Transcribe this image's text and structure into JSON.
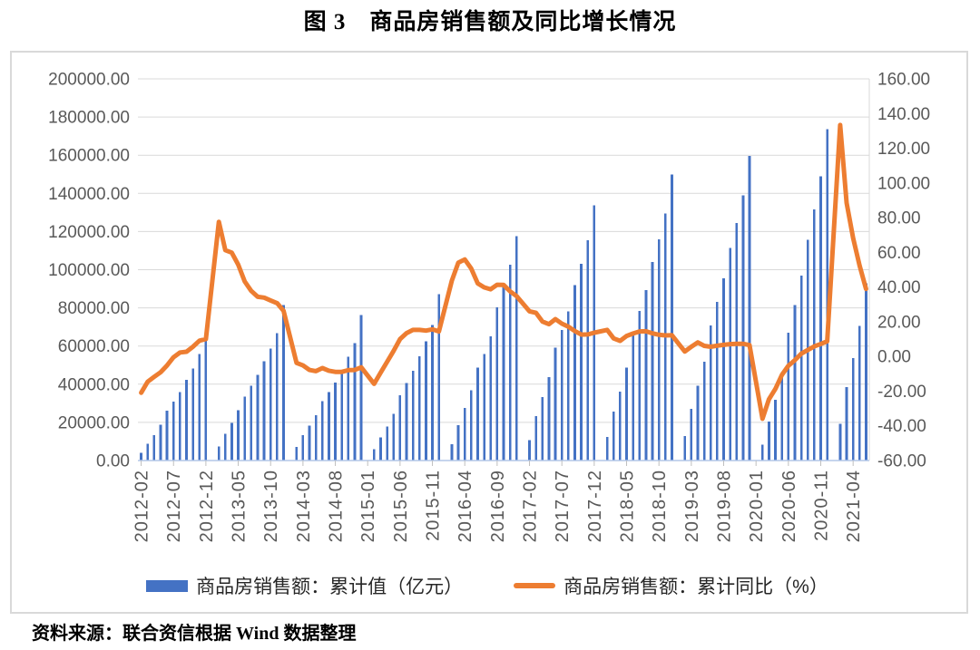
{
  "title": "图 3　商品房销售额及同比增长情况",
  "source": "资料来源：联合资信根据 Wind 数据整理",
  "colors": {
    "bar": "#4472C4",
    "line": "#ED7D31",
    "grid": "#D9D9D9",
    "baseline": "#B4C7E7",
    "tick": "#BFBFBF",
    "axis_text": "#595959",
    "frame_border": "#D9D9D9"
  },
  "legend": [
    {
      "type": "bar",
      "color": "#4472C4",
      "label": "商品房销售额：累计值（亿元）"
    },
    {
      "type": "line",
      "color": "#ED7D31",
      "label": "商品房销售额：累计同比（%）"
    }
  ],
  "chart_data": {
    "type": "combo-bar-line",
    "title": "图 3　商品房销售额及同比增长情况",
    "grid": true,
    "legend_position": "bottom",
    "x_label_interval": 5,
    "x_tick_labels": [
      "2012-02",
      "2012-07",
      "2012-12",
      "2013-05",
      "2013-10",
      "2014-03",
      "2014-08",
      "2015-01",
      "2015-06",
      "2015-11",
      "2016-04",
      "2016-09",
      "2017-02",
      "2017-07",
      "2017-12",
      "2018-05",
      "2018-10",
      "2019-03",
      "2019-08",
      "2020-01",
      "2020-06",
      "2020-11",
      "2021-04"
    ],
    "left_axis": {
      "min": 0,
      "max": 200000,
      "step": 20000,
      "ticks": [
        "200000.00",
        "180000.00",
        "160000.00",
        "140000.00",
        "120000.00",
        "100000.00",
        "80000.00",
        "60000.00",
        "40000.00",
        "20000.00",
        "0.00"
      ]
    },
    "right_axis": {
      "min": -60,
      "max": 160,
      "step": 20,
      "ticks": [
        "160.00",
        "140.00",
        "120.00",
        "100.00",
        "80.00",
        "60.00",
        "40.00",
        "20.00",
        "0.00",
        "-20.00",
        "-40.00",
        "-60.00"
      ]
    },
    "categories": [
      "2012-02",
      "2012-03",
      "2012-04",
      "2012-05",
      "2012-06",
      "2012-07",
      "2012-08",
      "2012-09",
      "2012-10",
      "2012-11",
      "2012-12",
      "2013-01",
      "2013-02",
      "2013-03",
      "2013-04",
      "2013-05",
      "2013-06",
      "2013-07",
      "2013-08",
      "2013-09",
      "2013-10",
      "2013-11",
      "2013-12",
      "2014-01",
      "2014-02",
      "2014-03",
      "2014-04",
      "2014-05",
      "2014-06",
      "2014-07",
      "2014-08",
      "2014-09",
      "2014-10",
      "2014-11",
      "2014-12",
      "2015-01",
      "2015-02",
      "2015-03",
      "2015-04",
      "2015-05",
      "2015-06",
      "2015-07",
      "2015-08",
      "2015-09",
      "2015-10",
      "2015-11",
      "2015-12",
      "2016-01",
      "2016-02",
      "2016-03",
      "2016-04",
      "2016-05",
      "2016-06",
      "2016-07",
      "2016-08",
      "2016-09",
      "2016-10",
      "2016-11",
      "2016-12",
      "2017-01",
      "2017-02",
      "2017-03",
      "2017-04",
      "2017-05",
      "2017-06",
      "2017-07",
      "2017-08",
      "2017-09",
      "2017-10",
      "2017-11",
      "2017-12",
      "2018-01",
      "2018-02",
      "2018-03",
      "2018-04",
      "2018-05",
      "2018-06",
      "2018-07",
      "2018-08",
      "2018-09",
      "2018-10",
      "2018-11",
      "2018-12",
      "2019-01",
      "2019-02",
      "2019-03",
      "2019-04",
      "2019-05",
      "2019-06",
      "2019-07",
      "2019-08",
      "2019-09",
      "2019-10",
      "2019-11",
      "2019-12",
      "2020-01",
      "2020-02",
      "2020-03",
      "2020-04",
      "2020-05",
      "2020-06",
      "2020-07",
      "2020-08",
      "2020-09",
      "2020-10",
      "2020-11",
      "2020-12",
      "2021-01",
      "2021-02",
      "2021-03",
      "2021-04",
      "2021-05",
      "2021-06"
    ],
    "series": [
      {
        "name": "商品房销售额：累计值（亿元）",
        "type": "bar",
        "axis": "left",
        "color": "#4472C4",
        "values": [
          4145,
          8672,
          13229,
          18684,
          26207,
          30815,
          35948,
          42210,
          48176,
          55816,
          64456,
          null,
          7359,
          13992,
          19727,
          26418,
          33376,
          39118,
          44775,
          52120,
          58632,
          66628,
          81428,
          null,
          7090,
          13263,
          18307,
          23674,
          31133,
          35930,
          40776,
          47509,
          54289,
          61464,
          76292,
          null,
          5972,
          12023,
          17739,
          24409,
          34259,
          40638,
          47008,
          54675,
          62412,
          71130,
          87281,
          null,
          8577,
          18524,
          27656,
          36775,
          48682,
          55762,
          64989,
          80208,
          91573,
          102503,
          117627,
          null,
          10806,
          23182,
          33223,
          43632,
          59152,
          68461,
          78096,
          91904,
          102990,
          115481,
          133701,
          null,
          12454,
          25597,
          36222,
          48778,
          66945,
          78300,
          89396,
          104132,
          115914,
          129508,
          149973,
          null,
          12803,
          27039,
          39141,
          51773,
          70698,
          83162,
          95373,
          111491,
          124417,
          139006,
          159725,
          null,
          8203,
          20365,
          31863,
          46269,
          66895,
          81422,
          96943,
          115647,
          131665,
          148969,
          173613,
          null,
          19151,
          38378,
          53609,
          70534,
          92931
        ]
      },
      {
        "name": "商品房销售额：累计同比（%）",
        "type": "line",
        "axis": "right",
        "color": "#ED7D31",
        "values": [
          -20.9,
          -14.6,
          -11.8,
          -9.1,
          -5.2,
          -0.5,
          2.3,
          2.7,
          5.6,
          9.1,
          10.0,
          null,
          77.6,
          61.3,
          59.8,
          52.8,
          43.2,
          37.8,
          34.4,
          33.9,
          32.3,
          30.7,
          26.3,
          null,
          -3.7,
          -5.2,
          -7.8,
          -8.5,
          -6.7,
          -8.2,
          -8.9,
          -8.9,
          -7.9,
          -7.8,
          -6.3,
          null,
          -15.8,
          -9.3,
          -3.1,
          3.1,
          10.0,
          13.4,
          15.3,
          15.3,
          14.9,
          15.6,
          14.4,
          null,
          43.6,
          54.1,
          55.9,
          50.7,
          42.1,
          39.8,
          38.7,
          41.3,
          41.2,
          37.5,
          34.8,
          null,
          26.0,
          25.1,
          20.1,
          18.6,
          21.5,
          18.9,
          17.2,
          14.6,
          12.6,
          12.7,
          13.7,
          null,
          15.3,
          10.4,
          9.0,
          11.8,
          13.2,
          14.4,
          14.5,
          13.3,
          12.5,
          12.1,
          12.2,
          null,
          2.8,
          5.6,
          8.1,
          6.1,
          5.6,
          6.2,
          6.7,
          7.1,
          7.3,
          7.3,
          6.5,
          null,
          -35.9,
          -24.7,
          -18.6,
          -10.6,
          -5.4,
          -2.1,
          1.6,
          3.7,
          5.8,
          7.2,
          8.7,
          null,
          133.4,
          88.5,
          68.2,
          52.4,
          38.9
        ]
      }
    ]
  }
}
